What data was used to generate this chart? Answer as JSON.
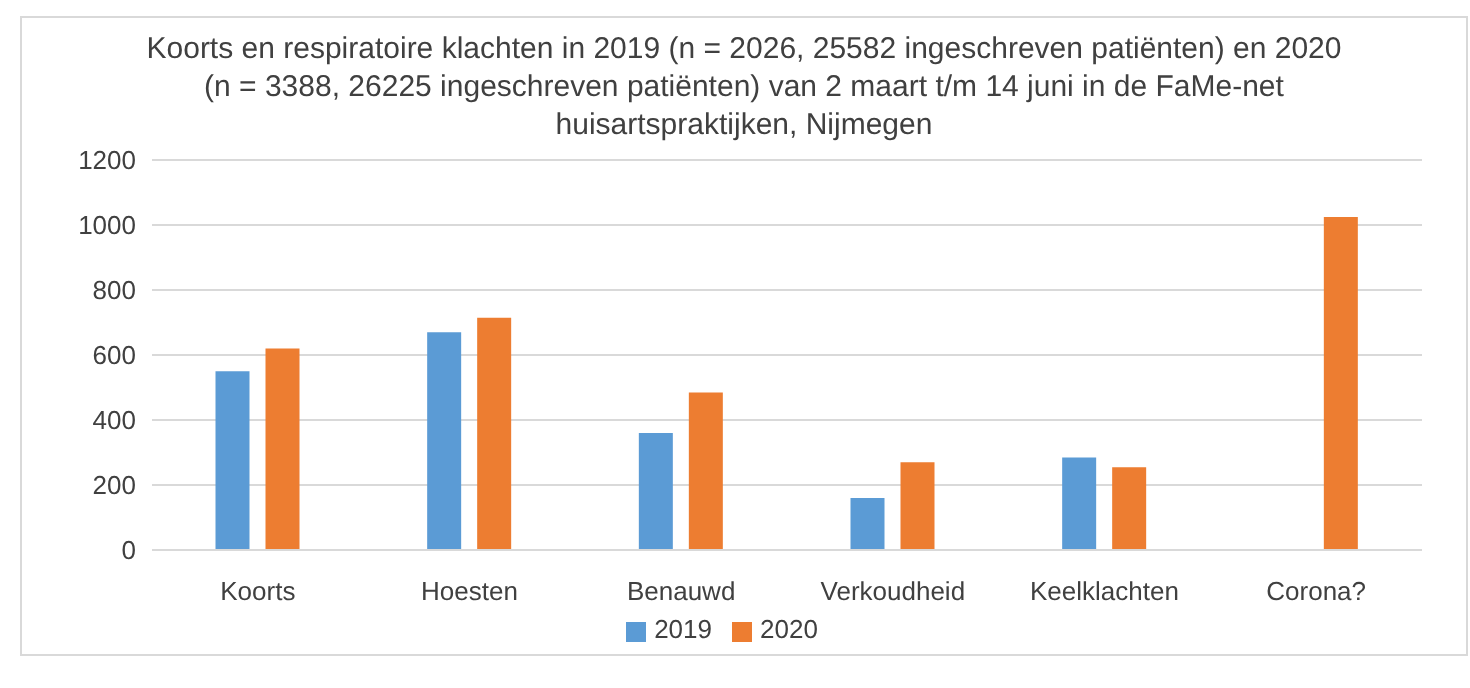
{
  "chart_data": {
    "type": "bar",
    "title": "Koorts en respiratoire klachten in 2019 (n = 2026, 25582 ingeschreven patiënten) en 2020  (n = 3388, 26225 ingeschreven patiënten) van 2 maart t/m 14 juni in de FaMe-net huisartspraktijken, Nijmegen",
    "categories": [
      "Koorts",
      "Hoesten",
      "Benauwd",
      "Verkoudheid",
      "Keelklachten",
      "Corona?"
    ],
    "series": [
      {
        "name": "2019",
        "color": "#5b9bd5",
        "values": [
          550,
          670,
          360,
          160,
          285,
          null
        ]
      },
      {
        "name": "2020",
        "color": "#ed7d31",
        "values": [
          620,
          715,
          485,
          270,
          255,
          1025
        ]
      }
    ],
    "ylim": [
      0,
      1200
    ],
    "yticks": [
      0,
      200,
      400,
      600,
      800,
      1000,
      1200
    ],
    "grid": "y",
    "legend": "bottom"
  }
}
